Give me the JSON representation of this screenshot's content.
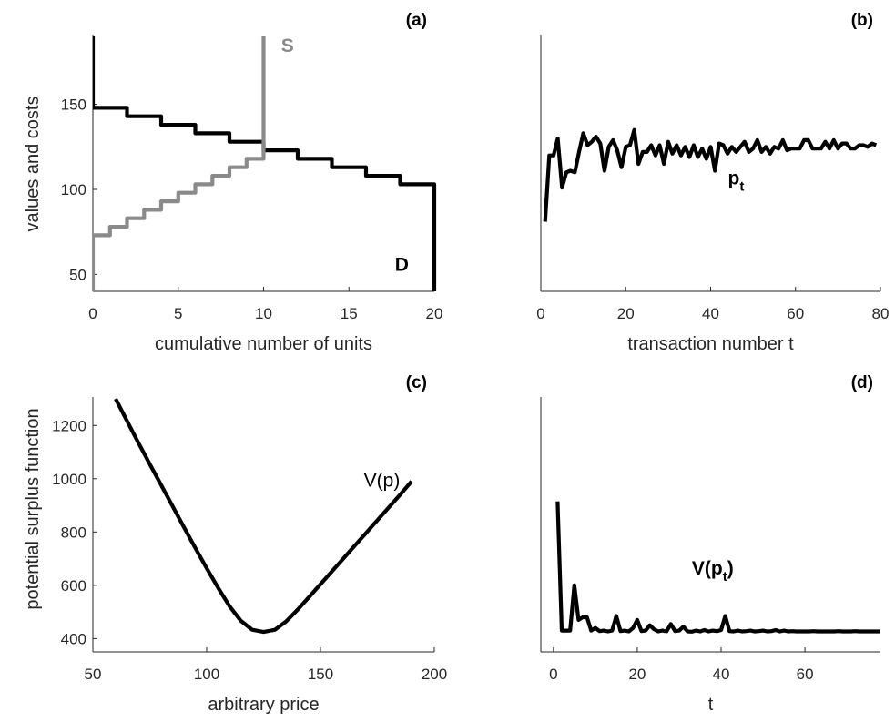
{
  "chart_data": [
    {
      "panel": "(a)",
      "type": "line",
      "xlabel": "cumulative number of units",
      "ylabel": "values and costs",
      "xlim": [
        0,
        20
      ],
      "ylim": [
        40,
        190
      ],
      "xticks": [
        0,
        5,
        10,
        15,
        20
      ],
      "yticks": [
        50,
        100,
        150
      ],
      "grid": false,
      "series": [
        {
          "name": "D",
          "color": "#000000",
          "x": [
            0,
            0,
            2,
            2,
            4,
            4,
            6,
            6,
            8,
            8,
            10,
            10,
            12,
            12,
            14,
            14,
            16,
            16,
            18,
            18,
            20,
            20
          ],
          "y": [
            190,
            148,
            148,
            143,
            143,
            138,
            138,
            133,
            133,
            128,
            128,
            123,
            123,
            118,
            118,
            113,
            113,
            108,
            108,
            103,
            103,
            40
          ]
        },
        {
          "name": "S",
          "color": "#8a8a8a",
          "x": [
            0,
            0,
            1,
            1,
            2,
            2,
            3,
            3,
            4,
            4,
            5,
            5,
            6,
            6,
            7,
            7,
            8,
            8,
            9,
            9,
            10,
            10
          ],
          "y": [
            40,
            73,
            73,
            78,
            78,
            83,
            83,
            88,
            88,
            93,
            93,
            98,
            98,
            103,
            103,
            108,
            108,
            113,
            113,
            118,
            118,
            190
          ]
        }
      ],
      "annotations": [
        {
          "text": "S",
          "x": 11.4,
          "y": 181,
          "style": "gray-bold"
        },
        {
          "text": "D",
          "x": 18.1,
          "y": 52,
          "style": "bold"
        }
      ]
    },
    {
      "panel": "(b)",
      "type": "line",
      "xlabel": "transaction number t",
      "ylabel": "",
      "xlim": [
        0,
        80
      ],
      "ylim": [
        40,
        190
      ],
      "xticks": [
        0,
        20,
        40,
        60,
        80
      ],
      "yticks": [],
      "grid": false,
      "series": [
        {
          "name": "p_t",
          "color": "#000000",
          "x": [
            1,
            2,
            3,
            4,
            5,
            6,
            7,
            8,
            9,
            10,
            11,
            12,
            13,
            14,
            15,
            16,
            17,
            18,
            19,
            20,
            21,
            22,
            23,
            24,
            25,
            26,
            27,
            28,
            29,
            30,
            31,
            32,
            33,
            34,
            35,
            36,
            37,
            38,
            39,
            40,
            41,
            42,
            43,
            44,
            45,
            46,
            47,
            48,
            49,
            50,
            51,
            52,
            53,
            54,
            55,
            56,
            57,
            58,
            59,
            60,
            61,
            62,
            63,
            64,
            65,
            66,
            67,
            68,
            69,
            70,
            71,
            72,
            73,
            74,
            75,
            76,
            77,
            78,
            79
          ],
          "y": [
            81,
            120,
            120,
            130,
            101,
            110,
            111,
            110,
            122,
            133,
            126,
            128,
            131,
            127,
            111,
            125,
            129,
            123,
            113,
            125,
            126,
            135,
            115,
            122,
            122,
            126,
            120,
            126,
            115,
            128,
            121,
            126,
            120,
            125,
            119,
            126,
            119,
            124,
            118,
            125,
            111,
            127,
            126,
            121,
            125,
            122,
            125,
            128,
            122,
            124,
            129,
            122,
            125,
            121,
            125,
            124,
            129,
            123,
            124,
            124,
            124,
            129,
            129,
            124,
            124,
            124,
            128,
            124,
            129,
            124,
            127,
            127,
            124,
            124,
            126,
            126,
            125,
            127,
            126
          ]
        }
      ],
      "annotations": [
        {
          "text": "p",
          "sub": "t",
          "x": 46,
          "y": 103,
          "style": "bold"
        }
      ]
    },
    {
      "panel": "(c)",
      "type": "line",
      "xlabel": "arbitrary price",
      "ylabel": "potential surplus function",
      "xlim": [
        50,
        200
      ],
      "ylim": [
        350,
        1300
      ],
      "xticks": [
        50,
        100,
        150,
        200
      ],
      "yticks": [
        400,
        600,
        800,
        1000,
        1200
      ],
      "grid": false,
      "series": [
        {
          "name": "V(p)",
          "color": "#000000",
          "x": [
            60,
            65,
            70,
            75,
            80,
            85,
            90,
            95,
            100,
            105,
            110,
            115,
            120,
            125,
            130,
            135,
            140,
            145,
            150,
            155,
            160,
            165,
            170,
            175,
            180,
            185,
            190
          ],
          "y": [
            1300,
            1217,
            1135,
            1055,
            976,
            897,
            818,
            740,
            664,
            591,
            522,
            467,
            433,
            425,
            433,
            465,
            509,
            556,
            604,
            652,
            700,
            748,
            796,
            844,
            892,
            940,
            990
          ]
        }
      ],
      "annotations": [
        {
          "text": "V(p)",
          "x": 177,
          "y": 970,
          "style": "normal"
        }
      ]
    },
    {
      "panel": "(d)",
      "type": "line",
      "xlabel": "t",
      "ylabel": "",
      "xlim": [
        -3,
        78
      ],
      "ylim": [
        350,
        1300
      ],
      "xticks": [
        0,
        20,
        40,
        60
      ],
      "yticks": [],
      "grid": false,
      "series": [
        {
          "name": "V(p_t)",
          "color": "#000000",
          "x": [
            1,
            2,
            3,
            4,
            5,
            6,
            7,
            8,
            9,
            10,
            11,
            12,
            13,
            14,
            15,
            16,
            17,
            18,
            19,
            20,
            21,
            22,
            23,
            24,
            25,
            26,
            27,
            28,
            29,
            30,
            31,
            32,
            33,
            34,
            35,
            36,
            37,
            38,
            39,
            40,
            41,
            42,
            43,
            44,
            45,
            46,
            47,
            48,
            49,
            50,
            51,
            52,
            53,
            54,
            55,
            56,
            57,
            58,
            59,
            60,
            61,
            62,
            63,
            64,
            65,
            66,
            67,
            68,
            69,
            70,
            71,
            72,
            73,
            74,
            75,
            76,
            77,
            78
          ],
          "y": [
            915,
            430,
            430,
            430,
            600,
            470,
            480,
            480,
            430,
            440,
            428,
            430,
            427,
            430,
            485,
            428,
            430,
            427,
            440,
            470,
            428,
            430,
            450,
            435,
            427,
            430,
            427,
            455,
            428,
            430,
            445,
            427,
            426,
            430,
            427,
            432,
            427,
            430,
            428,
            432,
            485,
            428,
            427,
            430,
            427,
            428,
            430,
            427,
            428,
            430,
            427,
            428,
            432,
            427,
            430,
            427,
            428,
            427,
            427,
            427,
            427,
            428,
            427,
            427,
            427,
            427,
            427,
            428,
            427,
            427,
            427,
            428,
            427,
            427,
            427,
            427,
            427,
            427
          ]
        }
      ],
      "annotations": [
        {
          "text": "V(p",
          "sub": "t",
          "tail": ")",
          "x": 38,
          "y": 640,
          "style": "bold"
        }
      ]
    }
  ]
}
